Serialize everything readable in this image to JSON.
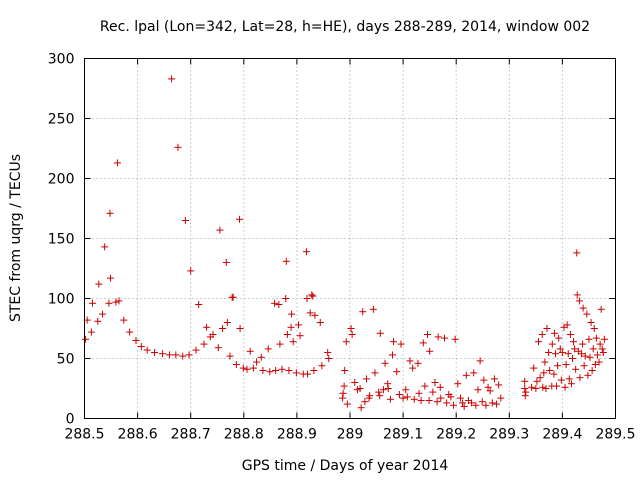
{
  "chart_data": {
    "type": "scatter",
    "title": "Rec. lpal (Lon=342, Lat=28, h=HE), days 288-289, 2014, window 002",
    "xlabel": "GPS time / Days of year 2014",
    "ylabel": "STEC from uqrg / TECUs",
    "xlim": [
      288.5,
      289.5
    ],
    "ylim": [
      0,
      300
    ],
    "xticks": [
      "288.5",
      "288.6",
      "288.7",
      "288.8",
      "288.9",
      "289",
      "289.1",
      "289.2",
      "289.3",
      "289.4",
      "289.5"
    ],
    "yticks": [
      "0",
      "50",
      "100",
      "150",
      "200",
      "250",
      "300"
    ],
    "grid": true,
    "marker": "plus",
    "color": "#cc0000",
    "series": [
      {
        "points": [
          [
            288.502,
            66
          ],
          [
            288.505,
            82
          ],
          [
            288.513,
            72
          ],
          [
            288.515,
            96
          ],
          [
            288.525,
            81
          ],
          [
            288.527,
            112
          ],
          [
            288.534,
            87
          ],
          [
            288.538,
            143
          ],
          [
            288.546,
            96
          ],
          [
            288.548,
            171
          ],
          [
            288.549,
            117
          ],
          [
            288.559,
            97
          ],
          [
            288.562,
            213
          ],
          [
            288.565,
            98
          ],
          [
            288.574,
            82
          ],
          [
            288.585,
            72
          ],
          [
            288.597,
            65
          ],
          [
            288.607,
            60
          ],
          [
            288.618,
            57
          ],
          [
            288.632,
            55
          ],
          [
            288.647,
            54
          ],
          [
            288.66,
            53
          ],
          [
            288.664,
            283
          ],
          [
            288.672,
            53
          ],
          [
            288.676,
            226
          ],
          [
            288.685,
            52
          ],
          [
            288.69,
            165
          ],
          [
            288.697,
            53
          ],
          [
            288.7,
            123
          ],
          [
            288.71,
            57
          ],
          [
            288.715,
            95
          ],
          [
            288.725,
            62
          ],
          [
            288.73,
            76
          ],
          [
            288.737,
            68
          ],
          [
            288.742,
            70
          ],
          [
            288.752,
            59
          ],
          [
            288.755,
            157
          ],
          [
            288.76,
            75
          ],
          [
            288.767,
            130
          ],
          [
            288.769,
            80
          ],
          [
            288.774,
            52
          ],
          [
            288.778,
            101
          ],
          [
            288.78,
            101
          ],
          [
            288.786,
            45
          ],
          [
            288.792,
            166
          ],
          [
            288.793,
            75
          ],
          [
            288.799,
            42
          ],
          [
            288.806,
            41
          ],
          [
            288.812,
            56
          ],
          [
            288.818,
            42
          ],
          [
            288.824,
            47
          ],
          [
            288.833,
            51
          ],
          [
            288.836,
            40
          ],
          [
            288.846,
            58
          ],
          [
            288.849,
            39
          ],
          [
            288.858,
            96
          ],
          [
            288.86,
            40
          ],
          [
            288.866,
            95
          ],
          [
            288.868,
            62
          ],
          [
            288.872,
            41
          ],
          [
            288.879,
            100
          ],
          [
            288.88,
            131
          ],
          [
            288.882,
            70
          ],
          [
            288.885,
            40
          ],
          [
            288.889,
            76
          ],
          [
            288.89,
            87
          ],
          [
            288.893,
            64
          ],
          [
            288.899,
            38
          ],
          [
            288.903,
            78
          ],
          [
            288.906,
            69
          ],
          [
            288.912,
            37
          ],
          [
            288.918,
            139
          ],
          [
            288.919,
            100
          ],
          [
            288.92,
            37
          ],
          [
            288.925,
            88
          ],
          [
            288.928,
            103
          ],
          [
            288.93,
            102
          ],
          [
            288.932,
            40
          ],
          [
            288.934,
            86
          ],
          [
            288.944,
            80
          ],
          [
            288.947,
            44
          ],
          [
            288.958,
            55
          ],
          [
            288.96,
            50
          ],
          [
            288.986,
            17
          ],
          [
            288.987,
            21
          ],
          [
            288.989,
            27
          ],
          [
            288.99,
            40
          ],
          [
            288.993,
            64
          ],
          [
            288.995,
            12
          ],
          [
            289.002,
            75
          ],
          [
            289.004,
            70
          ],
          [
            289.009,
            30
          ],
          [
            289.014,
            24
          ],
          [
            289.019,
            25
          ],
          [
            289.021,
            9
          ],
          [
            289.024,
            89
          ],
          [
            289.028,
            14
          ],
          [
            289.031,
            33
          ],
          [
            289.036,
            17
          ],
          [
            289.037,
            19
          ],
          [
            289.044,
            91
          ],
          [
            289.047,
            38
          ],
          [
            289.054,
            22
          ],
          [
            289.056,
            19
          ],
          [
            289.057,
            71
          ],
          [
            289.063,
            24
          ],
          [
            289.066,
            46
          ],
          [
            289.071,
            29
          ],
          [
            289.072,
            25
          ],
          [
            289.076,
            16
          ],
          [
            289.08,
            53
          ],
          [
            289.082,
            64
          ],
          [
            289.088,
            39
          ],
          [
            289.093,
            20
          ],
          [
            289.096,
            62
          ],
          [
            289.1,
            17
          ],
          [
            289.105,
            24
          ],
          [
            289.108,
            18
          ],
          [
            289.113,
            48
          ],
          [
            289.118,
            42
          ],
          [
            289.121,
            16
          ],
          [
            289.128,
            46
          ],
          [
            289.13,
            21
          ],
          [
            289.134,
            15
          ],
          [
            289.138,
            63
          ],
          [
            289.141,
            27
          ],
          [
            289.146,
            70
          ],
          [
            289.149,
            15
          ],
          [
            289.15,
            56
          ],
          [
            289.156,
            22
          ],
          [
            289.16,
            30
          ],
          [
            289.164,
            14
          ],
          [
            289.166,
            68
          ],
          [
            289.17,
            26
          ],
          [
            289.171,
            17
          ],
          [
            289.178,
            67
          ],
          [
            289.182,
            13
          ],
          [
            289.186,
            20
          ],
          [
            289.19,
            18
          ],
          [
            289.195,
            11
          ],
          [
            289.198,
            66
          ],
          [
            289.203,
            29
          ],
          [
            289.208,
            17
          ],
          [
            289.212,
            13
          ],
          [
            289.215,
            10
          ],
          [
            289.219,
            36
          ],
          [
            289.223,
            15
          ],
          [
            289.229,
            13
          ],
          [
            289.233,
            38
          ],
          [
            289.237,
            11
          ],
          [
            289.241,
            24
          ],
          [
            289.245,
            48
          ],
          [
            289.249,
            14
          ],
          [
            289.252,
            32
          ],
          [
            289.256,
            11
          ],
          [
            289.26,
            26
          ],
          [
            289.264,
            23
          ],
          [
            289.268,
            13
          ],
          [
            289.272,
            33
          ],
          [
            289.276,
            12
          ],
          [
            289.28,
            28
          ],
          [
            289.284,
            17
          ],
          [
            289.329,
            25
          ],
          [
            289.329,
            31
          ],
          [
            289.33,
            19
          ],
          [
            289.331,
            22
          ],
          [
            289.342,
            26
          ],
          [
            289.346,
            42
          ],
          [
            289.35,
            25
          ],
          [
            289.352,
            31
          ],
          [
            289.355,
            64
          ],
          [
            289.358,
            34
          ],
          [
            289.362,
            70
          ],
          [
            289.363,
            26
          ],
          [
            289.365,
            38
          ],
          [
            289.367,
            47
          ],
          [
            289.369,
            25
          ],
          [
            289.371,
            75
          ],
          [
            289.374,
            55
          ],
          [
            289.376,
            40
          ],
          [
            289.38,
            27
          ],
          [
            289.381,
            62
          ],
          [
            289.384,
            37
          ],
          [
            289.385,
            71
          ],
          [
            289.387,
            54
          ],
          [
            289.389,
            27
          ],
          [
            289.391,
            44
          ],
          [
            289.393,
            67
          ],
          [
            289.396,
            58
          ],
          [
            289.398,
            32
          ],
          [
            289.4,
            55
          ],
          [
            289.403,
            76
          ],
          [
            289.405,
            26
          ],
          [
            289.407,
            45
          ],
          [
            289.409,
            78
          ],
          [
            289.411,
            54
          ],
          [
            289.413,
            33
          ],
          [
            289.415,
            70
          ],
          [
            289.417,
            29
          ],
          [
            289.419,
            50
          ],
          [
            289.421,
            64
          ],
          [
            289.423,
            58
          ],
          [
            289.425,
            41
          ],
          [
            289.427,
            138
          ],
          [
            289.428,
            103
          ],
          [
            289.43,
            56
          ],
          [
            289.432,
            98
          ],
          [
            289.433,
            34
          ],
          [
            289.436,
            54
          ],
          [
            289.438,
            62
          ],
          [
            289.439,
            92
          ],
          [
            289.441,
            44
          ],
          [
            289.443,
            52
          ],
          [
            289.446,
            87
          ],
          [
            289.448,
            36
          ],
          [
            289.45,
            66
          ],
          [
            289.452,
            51
          ],
          [
            289.454,
            80
          ],
          [
            289.456,
            40
          ],
          [
            289.458,
            58
          ],
          [
            289.46,
            75
          ],
          [
            289.462,
            45
          ],
          [
            289.464,
            67
          ],
          [
            289.466,
            53
          ],
          [
            289.469,
            47
          ],
          [
            289.471,
            62
          ],
          [
            289.473,
            91
          ],
          [
            289.475,
            58
          ],
          [
            289.477,
            55
          ],
          [
            289.479,
            66
          ]
        ]
      }
    ]
  }
}
